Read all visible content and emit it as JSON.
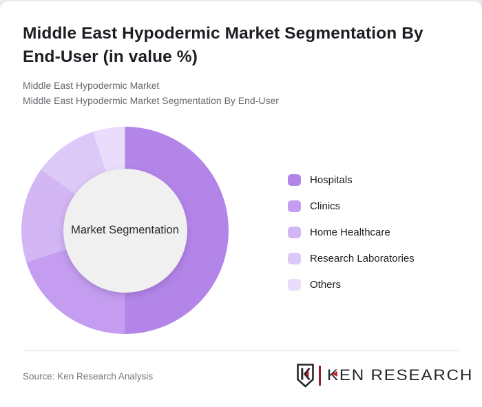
{
  "header": {
    "title": "Middle East Hypodermic Market Segmentation By End-User (in value %)",
    "subtitle_line1": "Middle East Hypodermic Market",
    "subtitle_line2": "Middle East Hypodermic Market Segmentation By End-User"
  },
  "chart_data": {
    "type": "pie",
    "variant": "donut",
    "title": "Middle East Hypodermic Market Segmentation By End-User (in value %)",
    "center_label": "Market Segmentation",
    "categories": [
      "Hospitals",
      "Clinics",
      "Home Healthcare",
      "Research Laboratories",
      "Others"
    ],
    "values": [
      50,
      20,
      15,
      10,
      5
    ],
    "unit": "%",
    "colors": [
      "#b385e8",
      "#c49df0",
      "#d3b6f4",
      "#ddc9f7",
      "#e9ddfb"
    ],
    "start_angle_deg": 0,
    "direction": "clockwise",
    "legend_position": "right",
    "hole_color": "#f0f0f1"
  },
  "footer": {
    "source": "Source: Ken Research Analysis",
    "logo_text": "KEN RESEARCH",
    "logo_colors": {
      "dark": "#26262b",
      "red": "#cb2027",
      "maroon": "#8e2030"
    }
  }
}
